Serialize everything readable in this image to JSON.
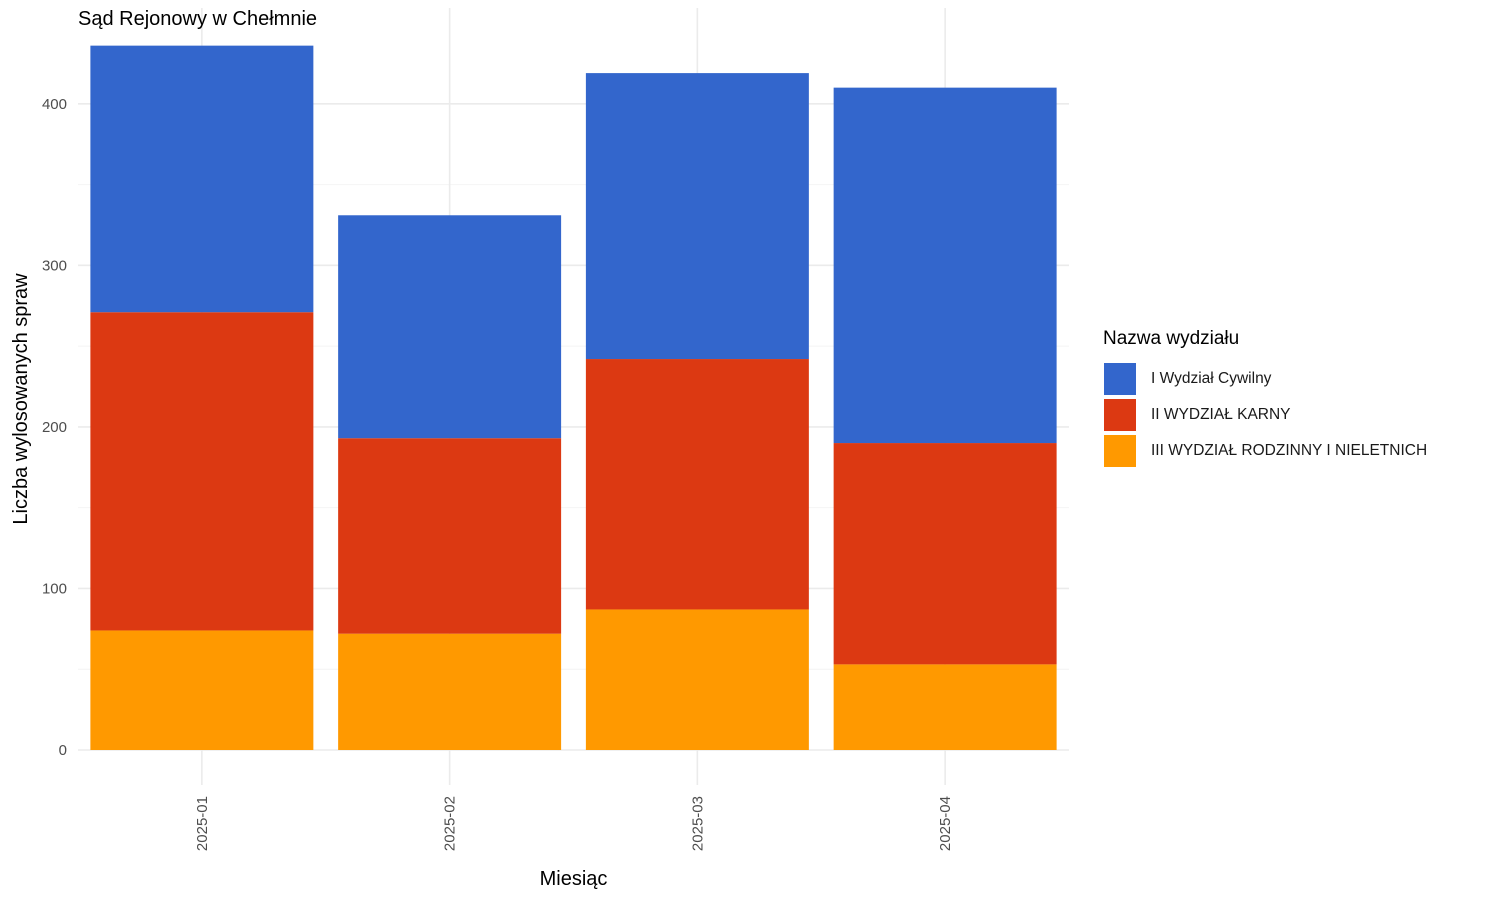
{
  "chart_data": {
    "type": "bar",
    "stacked": true,
    "title": "Sąd Rejonowy w Chełmnie",
    "xlabel": "Miesiąc",
    "ylabel": "Liczba wylosowanych spraw",
    "categories": [
      "2025-01",
      "2025-02",
      "2025-03",
      "2025-04"
    ],
    "y_ticks": [
      0,
      100,
      200,
      300,
      400
    ],
    "ylim": [
      0,
      445
    ],
    "grid": true,
    "legend": {
      "title": "Nazwa wydziału",
      "position": "right"
    },
    "series": [
      {
        "name": "III WYDZIAŁ RODZINNY I NIELETNICH",
        "color": "#FF9900",
        "values": [
          74,
          72,
          87,
          53
        ]
      },
      {
        "name": "II WYDZIAŁ KARNY",
        "color": "#DC3912",
        "values": [
          197,
          121,
          155,
          137
        ]
      },
      {
        "name": "I Wydział Cywilny",
        "color": "#3366CC",
        "values": [
          165,
          138,
          177,
          220
        ]
      }
    ],
    "legend_order": [
      "I Wydział Cywilny",
      "II WYDZIAŁ KARNY",
      "III WYDZIAŁ RODZINNY I NIELETNICH"
    ]
  }
}
